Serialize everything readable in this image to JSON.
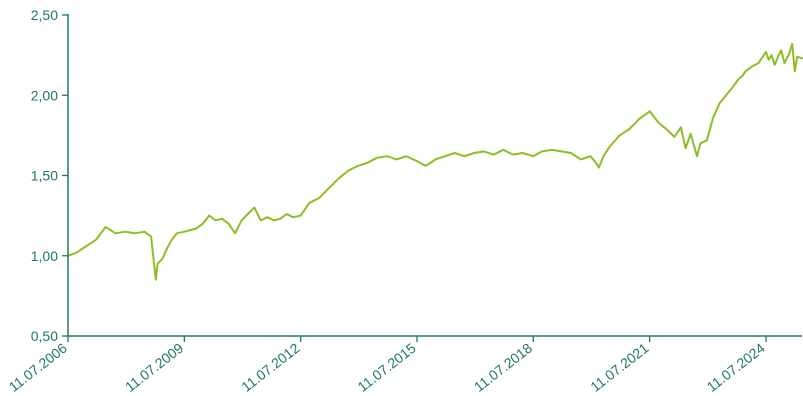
{
  "chart_data": {
    "type": "line",
    "title": "",
    "xlabel": "",
    "ylabel": "",
    "ylim": [
      0.5,
      2.5
    ],
    "xlim": [
      "2006-07-11",
      "2025-06-15"
    ],
    "grid": false,
    "legend": "none",
    "y_ticks": [
      "0,50",
      "1,00",
      "1,50",
      "2,00",
      "2,50"
    ],
    "y_tick_values": [
      0.5,
      1.0,
      1.5,
      2.0,
      2.5
    ],
    "x_ticks": [
      "11.07.2006",
      "11.07.2009",
      "11.07.2012",
      "11.07.2015",
      "11.07.2018",
      "11.07.2021",
      "11.07.2024"
    ],
    "x_tick_dates": [
      "2006-07-11",
      "2009-07-11",
      "2012-07-11",
      "2015-07-11",
      "2018-07-11",
      "2021-07-11",
      "2024-07-11"
    ],
    "series": [
      {
        "color": "#8cbf26",
        "x": [
          "2006-07-11",
          "2006-10-01",
          "2007-01-01",
          "2007-04-01",
          "2007-07-01",
          "2007-10-01",
          "2008-01-01",
          "2008-04-01",
          "2008-07-01",
          "2008-09-01",
          "2008-10-15",
          "2008-11-01",
          "2008-12-15",
          "2009-02-01",
          "2009-03-15",
          "2009-05-01",
          "2009-07-11",
          "2009-09-01",
          "2009-11-01",
          "2010-01-01",
          "2010-03-01",
          "2010-05-01",
          "2010-07-01",
          "2010-09-01",
          "2010-11-01",
          "2011-01-01",
          "2011-03-01",
          "2011-05-01",
          "2011-07-01",
          "2011-09-01",
          "2011-11-01",
          "2012-01-01",
          "2012-03-01",
          "2012-05-01",
          "2012-07-11",
          "2012-10-01",
          "2013-01-01",
          "2013-04-01",
          "2013-07-01",
          "2013-10-01",
          "2014-01-01",
          "2014-04-01",
          "2014-07-01",
          "2014-10-01",
          "2015-01-01",
          "2015-04-01",
          "2015-07-11",
          "2015-10-01",
          "2016-01-01",
          "2016-04-01",
          "2016-07-01",
          "2016-10-01",
          "2017-01-01",
          "2017-04-01",
          "2017-07-01",
          "2017-10-01",
          "2018-01-01",
          "2018-04-01",
          "2018-07-11",
          "2018-10-01",
          "2019-01-01",
          "2019-04-01",
          "2019-07-01",
          "2019-10-01",
          "2020-01-01",
          "2020-02-20",
          "2020-03-20",
          "2020-05-01",
          "2020-07-01",
          "2020-10-01",
          "2021-01-01",
          "2021-04-01",
          "2021-07-11",
          "2021-10-01",
          "2022-01-01",
          "2022-03-01",
          "2022-05-01",
          "2022-06-15",
          "2022-08-01",
          "2022-09-30",
          "2022-11-01",
          "2023-01-01",
          "2023-03-01",
          "2023-05-01",
          "2023-07-01",
          "2023-09-01",
          "2023-10-25",
          "2023-12-01",
          "2024-01-01",
          "2024-03-01",
          "2024-05-01",
          "2024-07-11",
          "2024-08-05",
          "2024-09-01",
          "2024-10-01",
          "2024-11-01",
          "2024-12-01",
          "2025-01-01",
          "2025-02-15",
          "2025-03-15",
          "2025-04-08",
          "2025-05-01",
          "2025-06-15"
        ],
        "y": [
          1.0,
          1.02,
          1.06,
          1.1,
          1.18,
          1.14,
          1.15,
          1.14,
          1.15,
          1.12,
          0.85,
          0.95,
          0.98,
          1.05,
          1.1,
          1.14,
          1.15,
          1.16,
          1.17,
          1.2,
          1.25,
          1.22,
          1.23,
          1.2,
          1.14,
          1.22,
          1.26,
          1.3,
          1.22,
          1.24,
          1.22,
          1.23,
          1.26,
          1.24,
          1.25,
          1.33,
          1.36,
          1.42,
          1.48,
          1.53,
          1.56,
          1.58,
          1.61,
          1.62,
          1.6,
          1.62,
          1.59,
          1.56,
          1.6,
          1.62,
          1.64,
          1.62,
          1.64,
          1.65,
          1.63,
          1.66,
          1.63,
          1.64,
          1.62,
          1.65,
          1.66,
          1.65,
          1.64,
          1.6,
          1.62,
          1.58,
          1.55,
          1.62,
          1.68,
          1.75,
          1.79,
          1.85,
          1.9,
          1.83,
          1.78,
          1.74,
          1.8,
          1.67,
          1.76,
          1.62,
          1.7,
          1.72,
          1.86,
          1.95,
          2.0,
          2.05,
          2.1,
          2.12,
          2.15,
          2.18,
          2.2,
          2.27,
          2.22,
          2.25,
          2.19,
          2.24,
          2.28,
          2.2,
          2.26,
          2.32,
          2.15,
          2.24,
          2.23
        ]
      }
    ]
  }
}
